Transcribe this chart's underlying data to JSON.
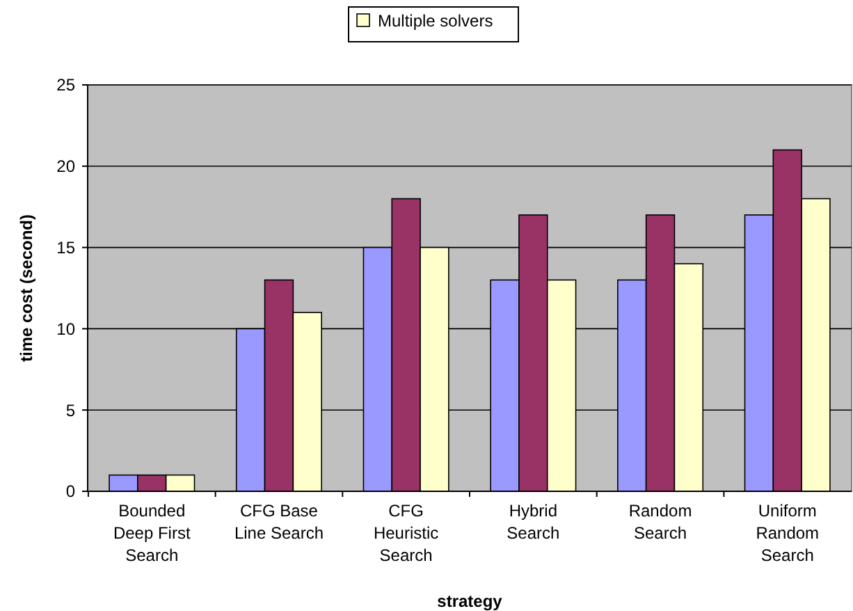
{
  "chart_data": {
    "type": "bar",
    "xlabel": "strategy",
    "ylabel": "time cost (second)",
    "categories": [
      "Bounded Deep First Search",
      "CFG Base Line Search",
      "CFG Heuristic Search",
      "Hybrid Search",
      "Random Search",
      "Uniform Random Search"
    ],
    "series": [
      {
        "color": "#9999ff",
        "values": [
          1,
          10,
          15,
          13,
          13,
          17
        ]
      },
      {
        "color": "#993366",
        "values": [
          1,
          13,
          18,
          17,
          17,
          21
        ]
      },
      {
        "name": "Multiple solvers",
        "color": "#ffffcc",
        "values": [
          1,
          11,
          15,
          13,
          14,
          18
        ]
      }
    ],
    "ylim": [
      0,
      25
    ],
    "yticks": [
      0,
      5,
      10,
      15,
      20,
      25
    ],
    "grid": "y",
    "legend": "top"
  }
}
